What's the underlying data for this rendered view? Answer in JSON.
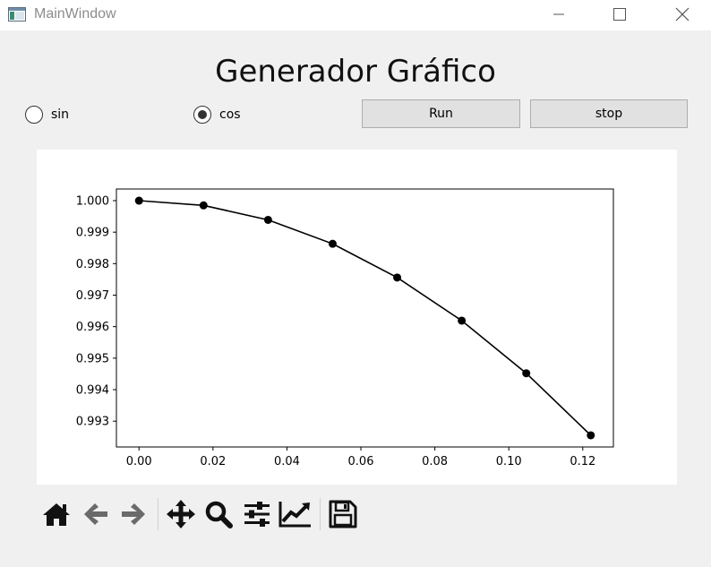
{
  "window": {
    "title": "MainWindow"
  },
  "heading": "Generador Gráfico",
  "radios": [
    {
      "label": "sin",
      "checked": false
    },
    {
      "label": "cos",
      "checked": true
    }
  ],
  "buttons": {
    "run": "Run",
    "stop": "stop"
  },
  "toolbar": {
    "icons": [
      "home-icon",
      "back-icon",
      "forward-icon",
      "pan-icon",
      "zoom-icon",
      "configure-subplots-icon",
      "edit-axis-icon",
      "save-icon"
    ]
  },
  "colors": {
    "line": "#000000",
    "background": "#f0f0f0",
    "button": "#e1e1e1"
  },
  "chart_data": {
    "type": "line",
    "title": "",
    "xlabel": "",
    "ylabel": "",
    "marker": "circle",
    "x": [
      0.0,
      0.01745,
      0.0349,
      0.05236,
      0.06981,
      0.08727,
      0.10472,
      0.12217
    ],
    "values": [
      1.0,
      0.99985,
      0.99939,
      0.99863,
      0.99756,
      0.99619,
      0.99452,
      0.99255
    ],
    "xlim": [
      -0.00611,
      0.12828
    ],
    "ylim": [
      0.99218,
      1.00037
    ],
    "xticks": [
      0.0,
      0.02,
      0.04,
      0.06,
      0.08,
      0.1,
      0.12
    ],
    "xtick_labels": [
      "0.00",
      "0.02",
      "0.04",
      "0.06",
      "0.08",
      "0.10",
      "0.12"
    ],
    "yticks": [
      0.993,
      0.994,
      0.995,
      0.996,
      0.997,
      0.998,
      0.999,
      1.0
    ],
    "ytick_labels": [
      "0.993",
      "0.994",
      "0.995",
      "0.996",
      "0.997",
      "0.998",
      "0.999",
      "1.000"
    ],
    "grid": false
  }
}
